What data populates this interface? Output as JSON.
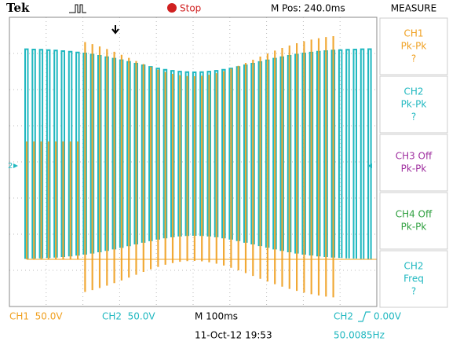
{
  "header": {
    "brand": "Tek",
    "status": "Stop",
    "position": "M Pos: 240.0ms"
  },
  "menu": {
    "title": "MEASURE",
    "items": [
      {
        "lines": [
          "CH1",
          "Pk-Pk",
          "?"
        ]
      },
      {
        "lines": [
          "CH2",
          "Pk-Pk",
          "?"
        ]
      },
      {
        "lines": [
          "CH3 Off",
          "Pk-Pk"
        ]
      },
      {
        "lines": [
          "CH4 Off",
          "Pk-Pk"
        ]
      },
      {
        "lines": [
          "CH2",
          "Freq",
          "?"
        ]
      }
    ]
  },
  "channel_marker": "2",
  "footer": {
    "ch1": "CH1  50.0V",
    "ch2": "CH2  50.0V",
    "timebase": "M 100ms",
    "date": "11-Oct-12 19:53",
    "trigger_source": "CH2",
    "trigger_level": "0.00V",
    "frequency": "50.0085Hz"
  }
}
